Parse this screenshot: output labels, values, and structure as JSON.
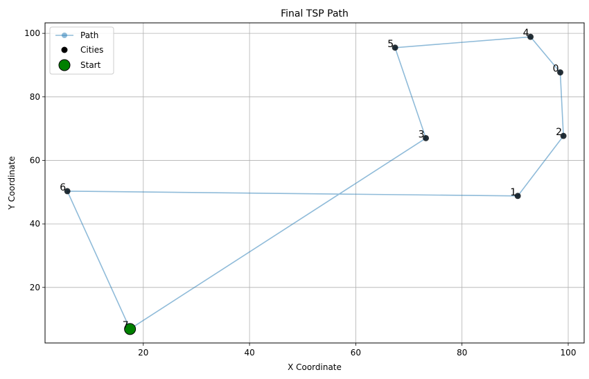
{
  "chart_data": {
    "type": "line",
    "title": "Final TSP Path",
    "xlabel": "X Coordinate",
    "ylabel": "Y Coordinate",
    "xlim": [
      1.5,
      103.0
    ],
    "ylim": [
      2.5,
      103.3
    ],
    "xticks": [
      20,
      40,
      60,
      80,
      100
    ],
    "yticks": [
      20,
      40,
      60,
      80,
      100
    ],
    "grid": true,
    "legend_position": "top-left",
    "legend": [
      "Path",
      "Cities",
      "Start"
    ],
    "colors": {
      "path": "#1f77b4",
      "cities": "#000000",
      "start": "#008000"
    },
    "cities": [
      {
        "label": "0",
        "x": 98.5,
        "y": 87.7
      },
      {
        "label": "1",
        "x": 90.5,
        "y": 48.8
      },
      {
        "label": "2",
        "x": 99.1,
        "y": 67.7
      },
      {
        "label": "3",
        "x": 73.2,
        "y": 67.0
      },
      {
        "label": "4",
        "x": 92.9,
        "y": 98.9
      },
      {
        "label": "5",
        "x": 67.4,
        "y": 95.5
      },
      {
        "label": "6",
        "x": 5.7,
        "y": 50.3
      },
      {
        "label": "7",
        "x": 17.5,
        "y": 6.9
      }
    ],
    "route": [
      "7",
      "3",
      "5",
      "4",
      "0",
      "2",
      "1",
      "6",
      "7"
    ],
    "start": "7"
  }
}
